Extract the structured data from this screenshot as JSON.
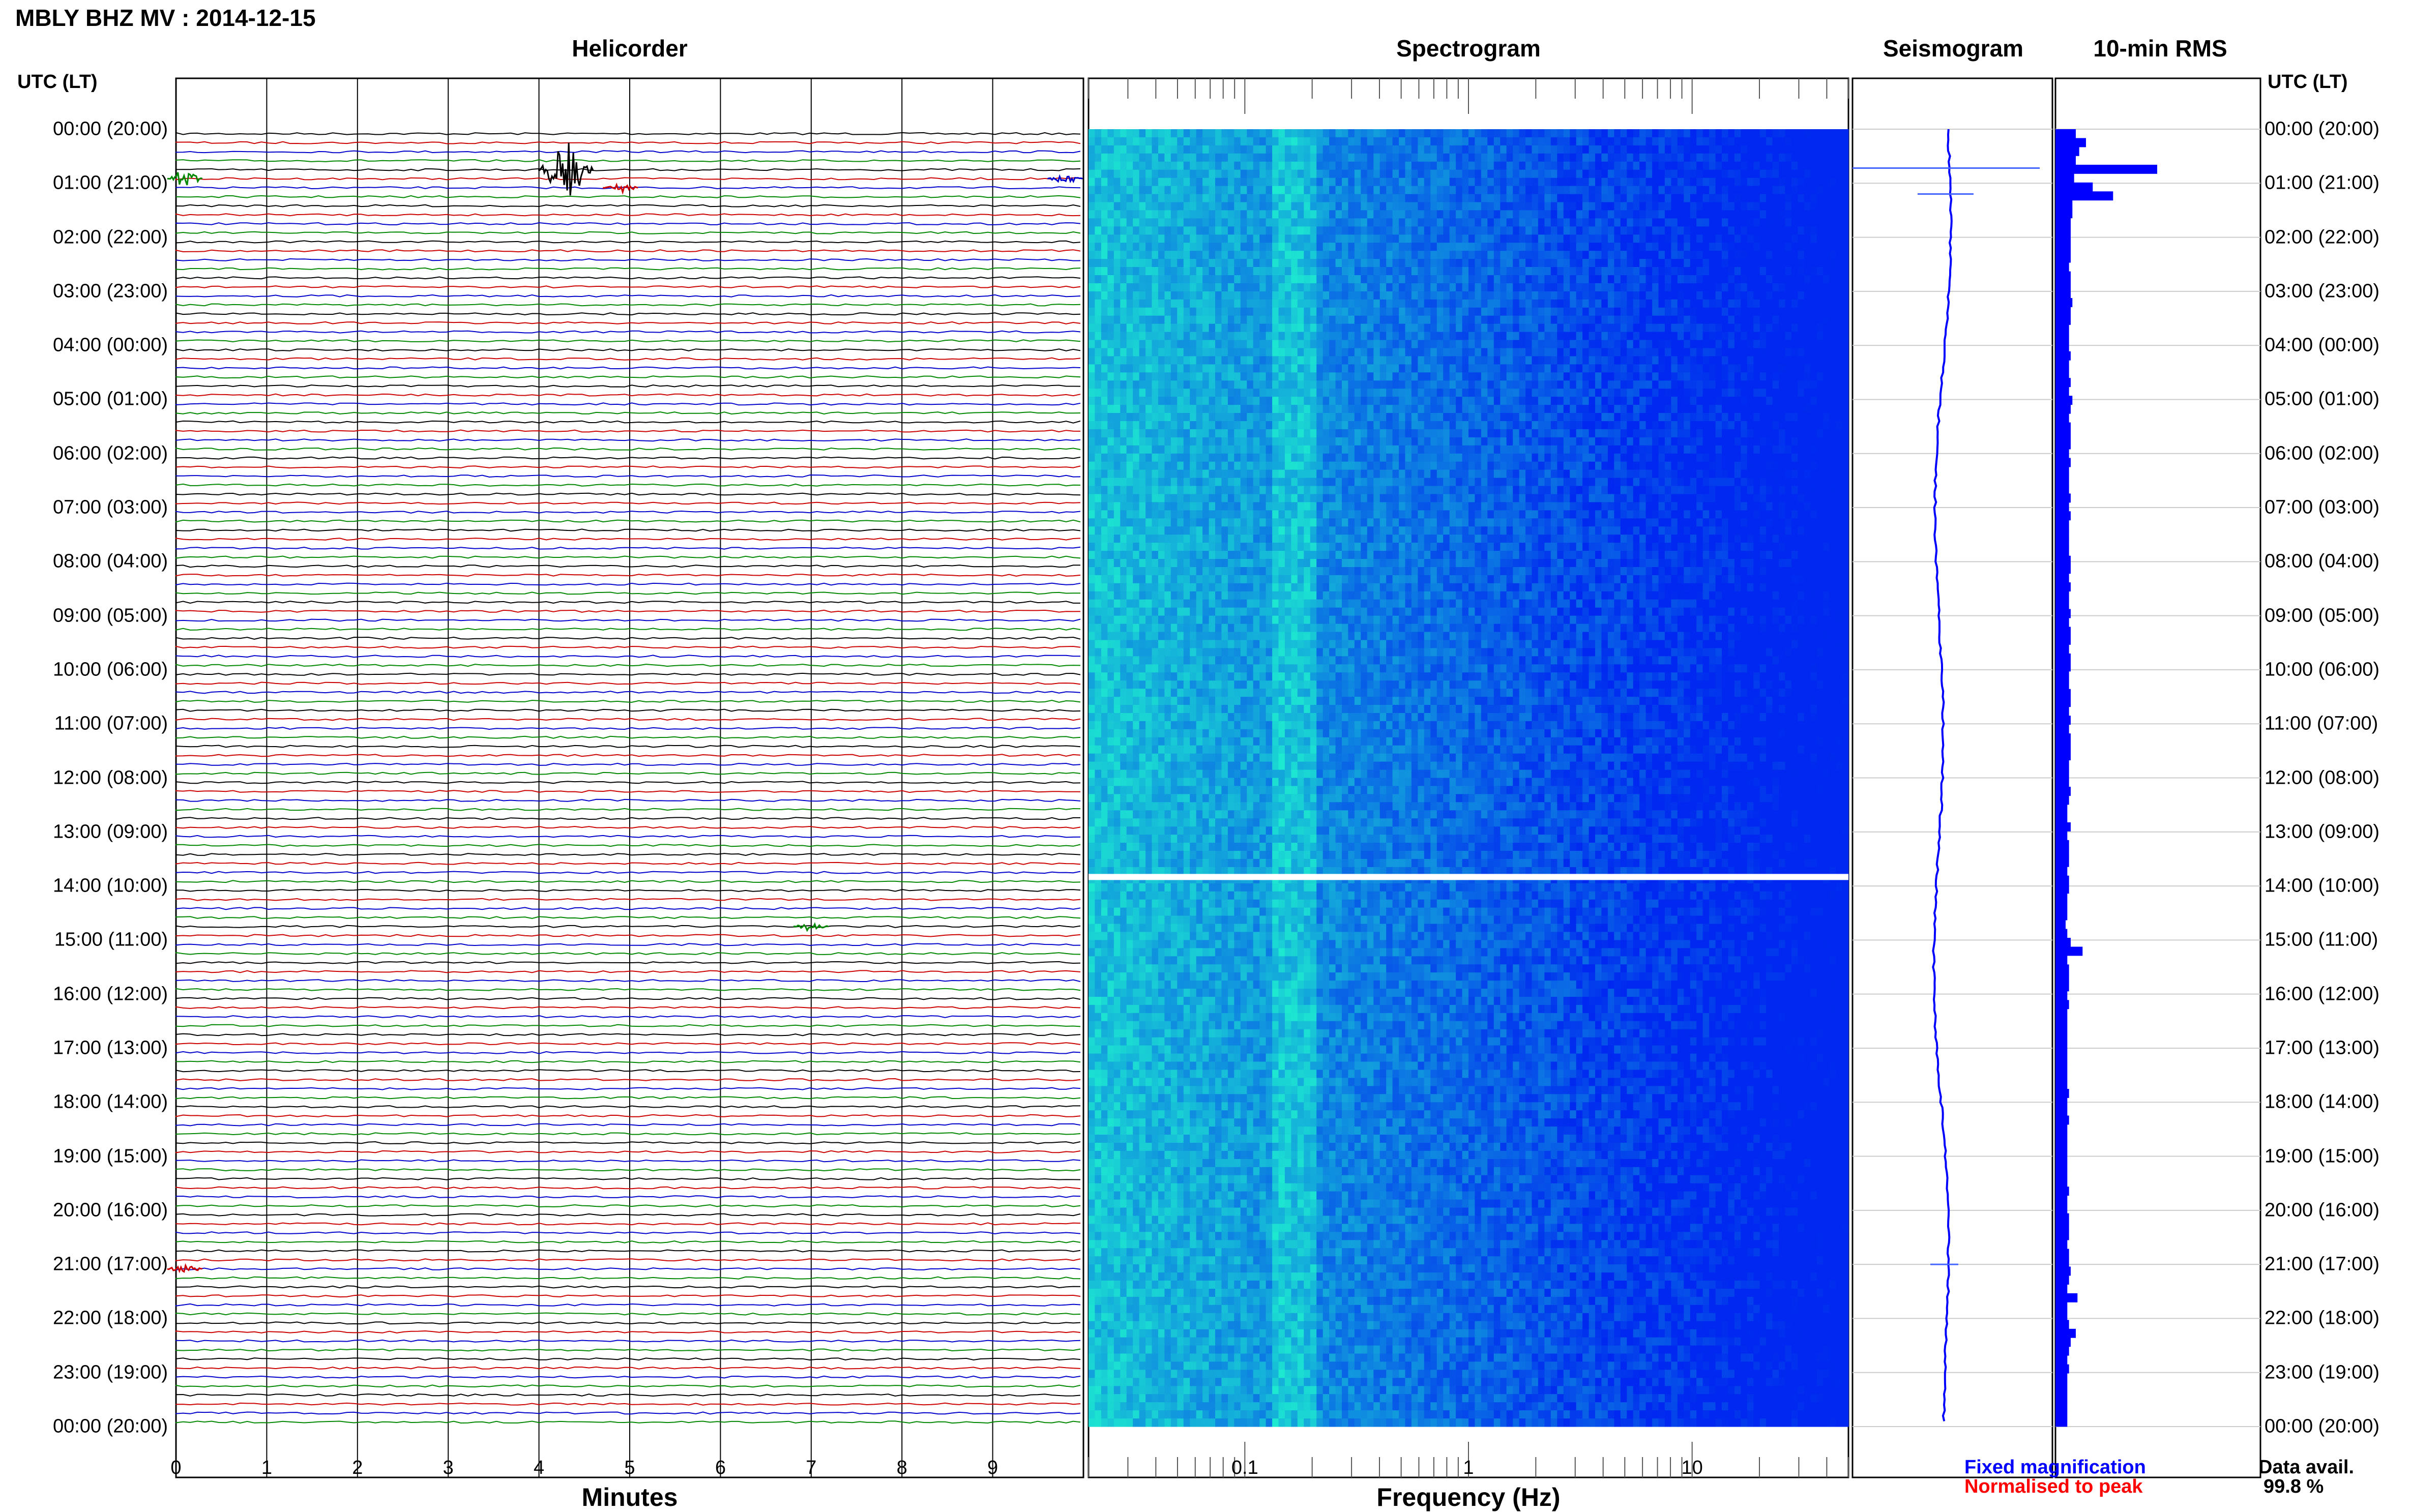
{
  "chart_data": {
    "type": "heatmap",
    "title": "MBLY BHZ MV : 2014-12-15",
    "panels": {
      "helicorder": {
        "title": "Helicorder",
        "xlabel": "Minutes",
        "xticks": [
          "0",
          "1",
          "2",
          "3",
          "4",
          "5",
          "6",
          "7",
          "8",
          "9"
        ],
        "xlim": [
          0,
          10
        ],
        "trace_colors": [
          "#000000",
          "#cc0000",
          "#0000cc",
          "#008800"
        ]
      },
      "spectrogram": {
        "title": "Spectrogram",
        "xlabel": "Frequency (Hz)",
        "xticks": [
          "0.1",
          "1",
          "10"
        ],
        "xscale": "log",
        "xlim": [
          0.02,
          50
        ]
      },
      "seismogram": {
        "title": "Seismogram"
      },
      "rms": {
        "title": "10-min RMS",
        "values": [
          0.12,
          0.18,
          0.14,
          0.12,
          0.6,
          0.11,
          0.22,
          0.34,
          0.1,
          0.1,
          0.09,
          0.09,
          0.09,
          0.09,
          0.09,
          0.08,
          0.09,
          0.09,
          0.09,
          0.1,
          0.09,
          0.09,
          0.08,
          0.08,
          0.08,
          0.09,
          0.08,
          0.08,
          0.09,
          0.08,
          0.1,
          0.09,
          0.08,
          0.09,
          0.09,
          0.09,
          0.08,
          0.09,
          0.08,
          0.08,
          0.08,
          0.09,
          0.08,
          0.09,
          0.08,
          0.08,
          0.08,
          0.08,
          0.09,
          0.09,
          0.08,
          0.09,
          0.08,
          0.08,
          0.09,
          0.08,
          0.09,
          0.09,
          0.08,
          0.09,
          0.09,
          0.08,
          0.08,
          0.09,
          0.09,
          0.08,
          0.09,
          0.08,
          0.09,
          0.09,
          0.09,
          0.08,
          0.08,
          0.08,
          0.09,
          0.08,
          0.07,
          0.07,
          0.09,
          0.07,
          0.08,
          0.08,
          0.08,
          0.07,
          0.08,
          0.08,
          0.07,
          0.07,
          0.07,
          0.06,
          0.07,
          0.09,
          0.16,
          0.07,
          0.08,
          0.08,
          0.08,
          0.07,
          0.08,
          0.07,
          0.07,
          0.07,
          0.07,
          0.07,
          0.07,
          0.07,
          0.07,
          0.07,
          0.08,
          0.07,
          0.07,
          0.08,
          0.07,
          0.07,
          0.07,
          0.07,
          0.07,
          0.07,
          0.07,
          0.08,
          0.07,
          0.07,
          0.08,
          0.08,
          0.08,
          0.07,
          0.08,
          0.08,
          0.09,
          0.08,
          0.07,
          0.13,
          0.07,
          0.07,
          0.08,
          0.12,
          0.09,
          0.08,
          0.07,
          0.08,
          0.07,
          0.07,
          0.07,
          0.07,
          0.07,
          0.07
        ]
      }
    },
    "row_header": "UTC (LT)",
    "row_labels": [
      "00:00 (20:00)",
      "01:00 (21:00)",
      "02:00 (22:00)",
      "03:00 (23:00)",
      "04:00 (00:00)",
      "05:00 (01:00)",
      "06:00 (02:00)",
      "07:00 (03:00)",
      "08:00 (04:00)",
      "09:00 (05:00)",
      "10:00 (06:00)",
      "11:00 (07:00)",
      "12:00 (08:00)",
      "13:00 (09:00)",
      "14:00 (10:00)",
      "15:00 (11:00)",
      "16:00 (12:00)",
      "17:00 (13:00)",
      "18:00 (14:00)",
      "19:00 (15:00)",
      "20:00 (16:00)",
      "21:00 (17:00)",
      "22:00 (18:00)",
      "23:00 (19:00)",
      "00:00 (20:00)"
    ],
    "legend": [
      {
        "label": "Fixed magnification",
        "color": "#0000ff"
      },
      {
        "label": "Normalised to peak",
        "color": "#ff0000"
      }
    ],
    "data_availability": {
      "label": "Data avail.",
      "value": "99.8 %"
    },
    "events": [
      {
        "time_label": "00:40",
        "minute": 4.3,
        "amplitude": "large",
        "color": "#000000"
      },
      {
        "time_label": "00:50",
        "minute": 0.1,
        "amplitude": "medium",
        "color": "#008800"
      },
      {
        "time_label": "01:00",
        "minute": 4.9,
        "amplitude": "small",
        "color": "#cc0000"
      },
      {
        "time_label": "00:50",
        "minute": 9.8,
        "amplitude": "small",
        "color": "#0000cc"
      },
      {
        "time_label": "14:40",
        "minute": 7.0,
        "amplitude": "small",
        "color": "#008800"
      },
      {
        "time_label": "21:00",
        "minute": 0.1,
        "amplitude": "small",
        "color": "#cc0000"
      }
    ],
    "gap": {
      "time_label": "13:50",
      "note": ""
    }
  }
}
